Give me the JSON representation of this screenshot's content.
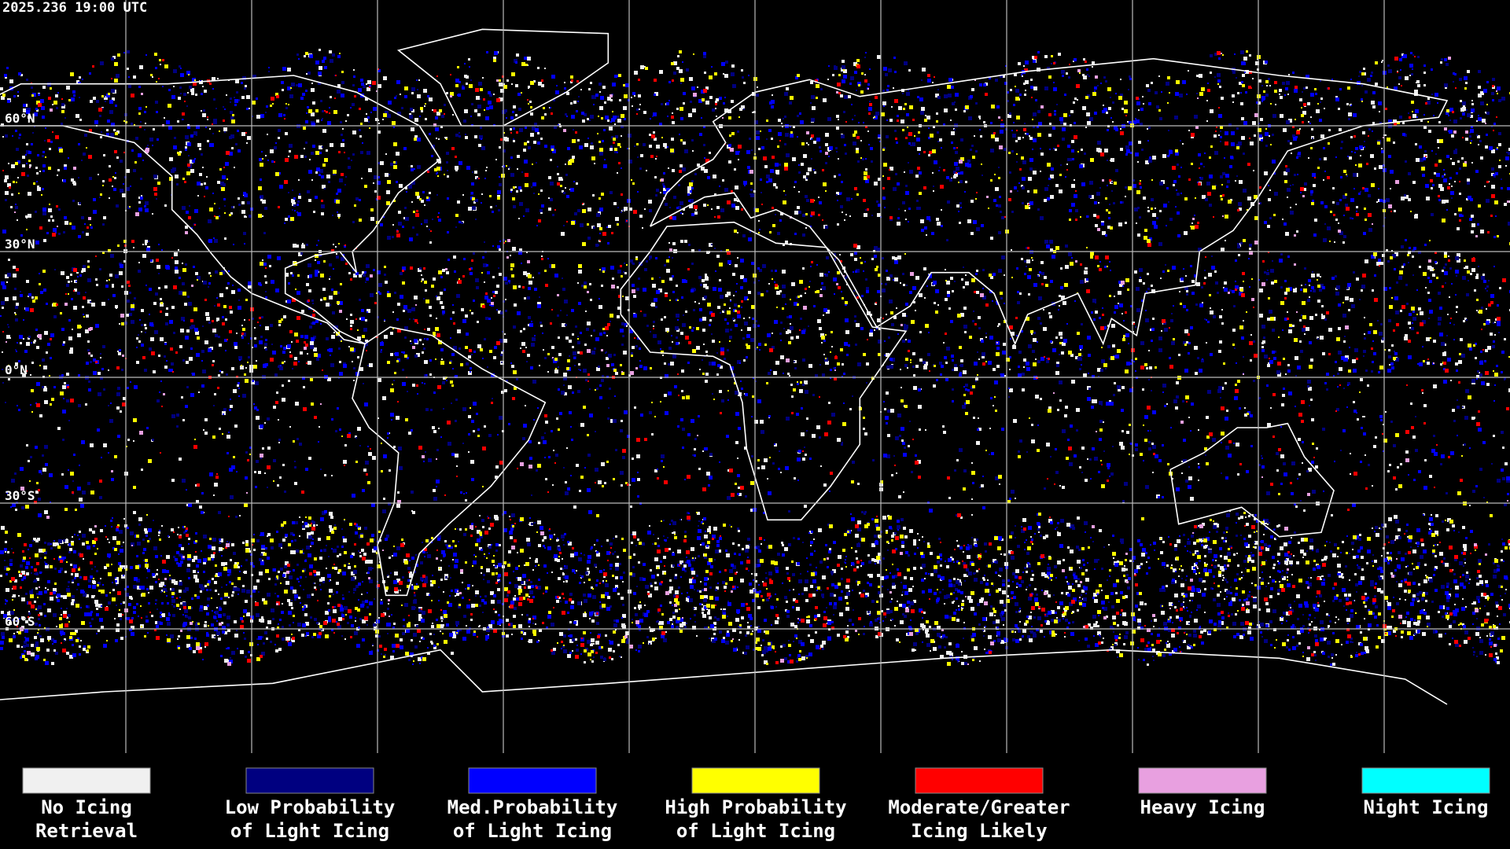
{
  "header": {
    "timestamp": "2025.236 19:00 UTC"
  },
  "map": {
    "latitude_labels": [
      "60°N",
      "30°N",
      "0°N",
      "30°S",
      "60°S"
    ]
  },
  "legend": {
    "items": [
      {
        "label": [
          "No Icing",
          "Retrieval"
        ],
        "color": "#f0f0f0"
      },
      {
        "label": [
          "Low Probability",
          "of Light Icing"
        ],
        "color": "#000080"
      },
      {
        "label": [
          "Med.Probability",
          "of Light Icing"
        ],
        "color": "#0000ff"
      },
      {
        "label": [
          "High Probability",
          "of Light Icing"
        ],
        "color": "#ffff00"
      },
      {
        "label": [
          "Moderate/Greater",
          "Icing Likely"
        ],
        "color": "#ff0000"
      },
      {
        "label": [
          "Heavy Icing"
        ],
        "color": "#e8a0e0"
      },
      {
        "label": [
          "Night Icing"
        ],
        "color": "#00ffff"
      }
    ]
  }
}
